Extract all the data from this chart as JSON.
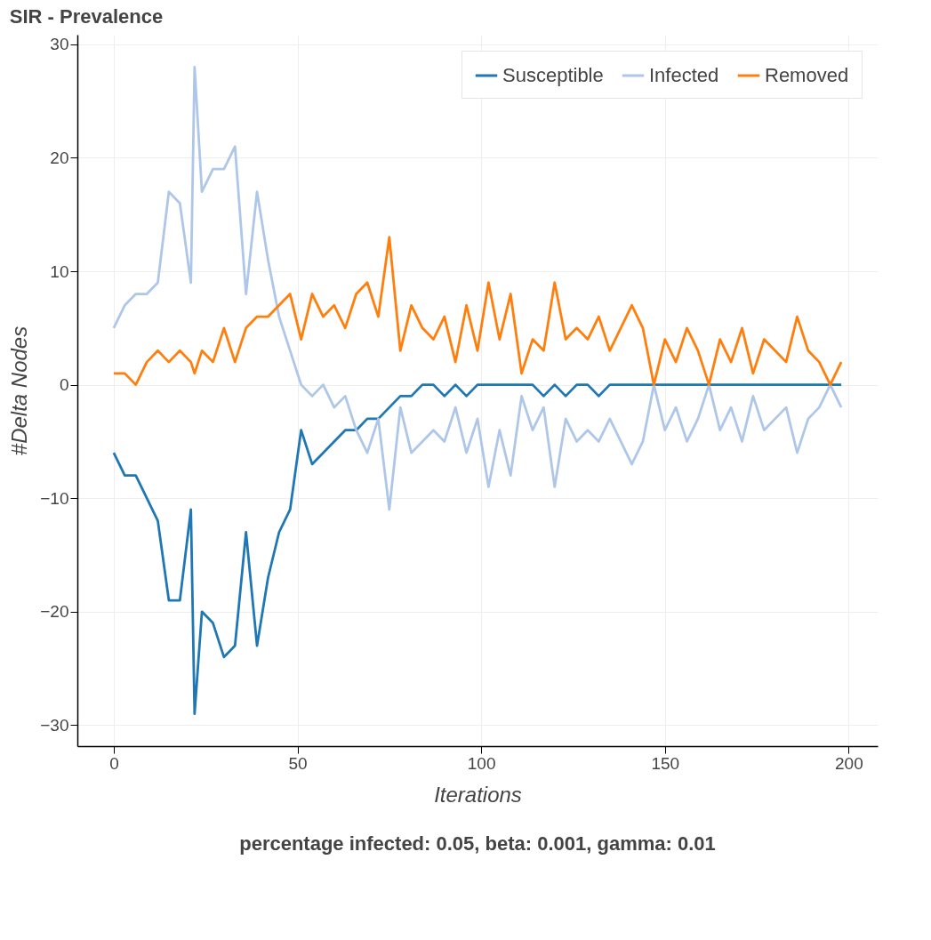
{
  "chart_data": {
    "type": "line",
    "title": "SIR - Prevalence",
    "xlabel": "Iterations",
    "ylabel": "#Delta Nodes",
    "annotations": [
      "percentage infected: 0.05, beta: 0.001, gamma: 0.01"
    ],
    "x": [
      0,
      3,
      6,
      9,
      12,
      15,
      18,
      21,
      22,
      24,
      27,
      30,
      33,
      36,
      39,
      42,
      45,
      48,
      51,
      54,
      57,
      60,
      63,
      66,
      69,
      72,
      75,
      78,
      81,
      84,
      87,
      90,
      93,
      96,
      99,
      102,
      105,
      108,
      111,
      114,
      117,
      120,
      123,
      126,
      129,
      132,
      135,
      138,
      141,
      144,
      147,
      150,
      153,
      156,
      159,
      162,
      165,
      168,
      171,
      174,
      177,
      180,
      183,
      186,
      189,
      192,
      195,
      198
    ],
    "series": [
      {
        "name": "Susceptible",
        "color": "#1f77b4",
        "values": [
          -6,
          -8,
          -8,
          -10,
          -12,
          -19,
          -19,
          -11,
          -29,
          -20,
          -21,
          -24,
          -23,
          -13,
          -23,
          -17,
          -13,
          -11,
          -4,
          -7,
          -6,
          -5,
          -4,
          -4,
          -3,
          -3,
          -2,
          -1,
          -1,
          0,
          0,
          -1,
          0,
          -1,
          0,
          0,
          0,
          0,
          0,
          0,
          -1,
          0,
          -1,
          0,
          0,
          -1,
          0,
          0,
          0,
          0,
          0,
          0,
          0,
          0,
          0,
          0,
          0,
          0,
          0,
          0,
          0,
          0,
          0,
          0,
          0,
          0,
          0,
          0
        ]
      },
      {
        "name": "Infected",
        "color": "#aec7e8",
        "values": [
          5,
          7,
          8,
          8,
          9,
          17,
          16,
          9,
          28,
          17,
          19,
          19,
          21,
          8,
          17,
          11,
          6,
          3,
          0,
          -1,
          0,
          -2,
          -1,
          -4,
          -6,
          -3,
          -11,
          -2,
          -6,
          -5,
          -4,
          -5,
          -2,
          -6,
          -3,
          -9,
          -4,
          -8,
          -1,
          -4,
          -2,
          -9,
          -3,
          -5,
          -4,
          -5,
          -3,
          -5,
          -7,
          -5,
          0,
          -4,
          -2,
          -5,
          -3,
          0,
          -4,
          -2,
          -5,
          -1,
          -4,
          -3,
          -2,
          -6,
          -3,
          -2,
          0,
          -2
        ]
      },
      {
        "name": "Removed",
        "color": "#ff7f0e",
        "values": [
          1,
          1,
          0,
          2,
          3,
          2,
          3,
          2,
          1,
          3,
          2,
          5,
          2,
          5,
          6,
          6,
          7,
          8,
          4,
          8,
          6,
          7,
          5,
          8,
          9,
          6,
          13,
          3,
          7,
          5,
          4,
          6,
          2,
          7,
          3,
          9,
          4,
          8,
          1,
          4,
          3,
          9,
          4,
          5,
          4,
          6,
          3,
          5,
          7,
          5,
          0,
          4,
          2,
          5,
          3,
          0,
          4,
          2,
          5,
          1,
          4,
          3,
          2,
          6,
          3,
          2,
          0,
          2
        ]
      }
    ],
    "xlim": [
      -9.9,
      207.9
    ],
    "xticks": [
      0,
      50,
      100,
      150,
      200
    ],
    "ylim": [
      -31.85,
      30.85
    ],
    "yticks": [
      -30,
      -20,
      -10,
      0,
      10,
      20,
      30
    ],
    "grid": true,
    "legend": "top right",
    "line_style": "solid",
    "marker": "none"
  }
}
